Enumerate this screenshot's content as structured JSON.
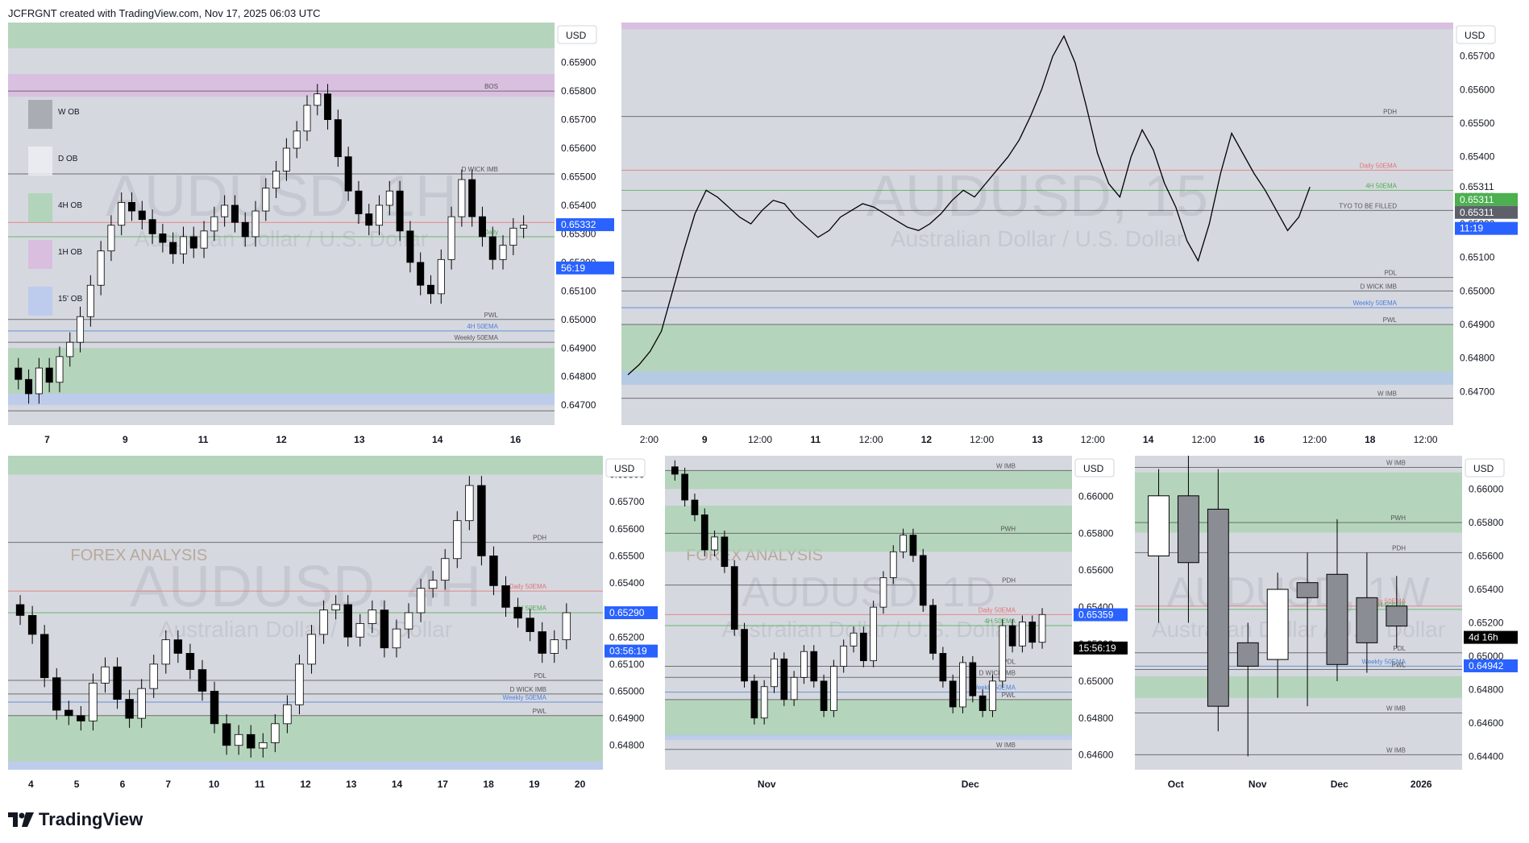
{
  "header": {
    "created_text": "JCFRGNT created with TradingView.com, Nov 17, 2025 06:03 UTC"
  },
  "footer": {
    "brand": "TradingView"
  },
  "colors": {
    "panel_bg": "#d6d8e0",
    "up": "#ffffff",
    "down": "#000000",
    "green_zone": "#a9d3b0",
    "purple_zone": "#d9b8e0",
    "blue_zone": "#b6c8f0",
    "price_blue": "#2962ff",
    "price_green": "#4caf50",
    "price_gray": "#5d606b"
  },
  "chart_data": [
    {
      "id": "p1",
      "type": "candlestick",
      "title": "AUDUSD, 1H",
      "subtitle": "Australian Dollar / U.S. Dollar",
      "currency": "USD",
      "x_ticks": [
        "7",
        "9",
        "11",
        "12",
        "13",
        "14",
        "16"
      ],
      "y_ticks": [
        "0.65900",
        "0.65800",
        "0.65700",
        "0.65600",
        "0.65500",
        "0.65400",
        "0.65300",
        "0.65200",
        "0.65100",
        "0.65000",
        "0.64900",
        "0.64800",
        "0.64700"
      ],
      "ylim": [
        0.6463,
        0.6604
      ],
      "price_labels": [
        {
          "text": "0.65332",
          "value": 0.65332,
          "color": "#2962ff"
        },
        {
          "text": "56:19",
          "value": 0.6522,
          "color": "#2962ff"
        }
      ],
      "legend": [
        "W OB",
        "D OB",
        "4H OB",
        "1H OB",
        "15' OB"
      ],
      "annotations": [
        "BOS",
        "D WICK IMB",
        "PWL",
        "Weekly 50EMA",
        "4H 50EMA",
        "Daily"
      ],
      "close": [
        0.6479,
        0.6474,
        0.6483,
        0.6478,
        0.6487,
        0.6492,
        0.6501,
        0.6512,
        0.6524,
        0.6533,
        0.6541,
        0.6538,
        0.6535,
        0.653,
        0.6527,
        0.6523,
        0.6529,
        0.6525,
        0.6531,
        0.6536,
        0.654,
        0.6534,
        0.6529,
        0.6538,
        0.6546,
        0.6552,
        0.656,
        0.6566,
        0.6575,
        0.6579,
        0.657,
        0.6557,
        0.6545,
        0.6537,
        0.6533,
        0.654,
        0.6545,
        0.6531,
        0.652,
        0.6512,
        0.6509,
        0.6521,
        0.6536,
        0.6549,
        0.6536,
        0.6529,
        0.6521,
        0.6526,
        0.6532,
        0.6533
      ]
    },
    {
      "id": "p2",
      "type": "line",
      "title": "AUDUSD, 15",
      "subtitle": "Australian Dollar / U.S. Dollar",
      "currency": "USD",
      "x_ticks": [
        "2:00",
        "9",
        "12:00",
        "11",
        "12:00",
        "12",
        "12:00",
        "13",
        "12:00",
        "14",
        "12:00",
        "16",
        "12:00",
        "18",
        "12:00"
      ],
      "y_ticks": [
        "0.65700",
        "0.65600",
        "0.65500",
        "0.65400",
        "0.65300",
        "0.65200",
        "0.65100",
        "0.65000",
        "0.64900",
        "0.64800",
        "0.64700",
        "0.64600"
      ],
      "ylim": [
        0.646,
        0.658
      ],
      "price_labels": [
        {
          "text": "0.65311",
          "value": 0.65311,
          "color": "#ffffff"
        },
        {
          "text": "0.65311",
          "value": 0.65311,
          "color": "#4caf50"
        },
        {
          "text": "0.65311",
          "value": 0.65311,
          "color": "#5d606b"
        },
        {
          "text": "11:19",
          "value": 0.6522,
          "color": "#2962ff"
        }
      ],
      "annotations": [
        "PDH",
        "Daily 50EMA",
        "4H 50EMA",
        "TYO TO BE FILLED",
        "PDL",
        "D WICK IMB",
        "Weekly 50EMA",
        "PWL",
        "W IMB"
      ],
      "close": [
        0.6475,
        0.6478,
        0.6482,
        0.6488,
        0.65,
        0.6512,
        0.6523,
        0.653,
        0.6528,
        0.6525,
        0.6522,
        0.652,
        0.6524,
        0.6527,
        0.6526,
        0.6522,
        0.6519,
        0.6516,
        0.6518,
        0.6522,
        0.6524,
        0.6526,
        0.6525,
        0.6523,
        0.6521,
        0.6519,
        0.6518,
        0.652,
        0.6523,
        0.6527,
        0.653,
        0.6528,
        0.6532,
        0.6536,
        0.654,
        0.6545,
        0.6552,
        0.656,
        0.657,
        0.6576,
        0.6568,
        0.6555,
        0.6541,
        0.6532,
        0.6528,
        0.654,
        0.6548,
        0.6542,
        0.6532,
        0.6525,
        0.6515,
        0.6509,
        0.652,
        0.6535,
        0.6547,
        0.6541,
        0.6535,
        0.653,
        0.6524,
        0.6518,
        0.6522,
        0.6531
      ]
    },
    {
      "id": "p3",
      "type": "candlestick",
      "title": "AUDUSD, 4H",
      "subtitle": "Australian Dollar / U.S. Dollar",
      "currency": "USD",
      "watermark": "FOREX ANALYSIS",
      "x_ticks": [
        "4",
        "5",
        "6",
        "7",
        "10",
        "11",
        "12",
        "13",
        "14",
        "17",
        "18",
        "19",
        "20"
      ],
      "y_ticks": [
        "0.65800",
        "0.65700",
        "0.65600",
        "0.65500",
        "0.65400",
        "0.65300",
        "0.65200",
        "0.65100",
        "0.65000",
        "0.64900",
        "0.64800"
      ],
      "ylim": [
        0.6471,
        0.6587
      ],
      "price_labels": [
        {
          "text": "0.65290",
          "value": 0.6529,
          "color": "#2962ff"
        },
        {
          "text": "03:56:19",
          "value": 0.6519,
          "color": "#2962ff"
        }
      ],
      "annotations": [
        "PDH",
        "Daily 50EMA",
        "4H 50EMA",
        "PDL",
        "D WICK IMB",
        "Weekly 50EMA",
        "PWL"
      ],
      "close": [
        0.6528,
        0.6521,
        0.6505,
        0.6493,
        0.6491,
        0.6489,
        0.6503,
        0.6509,
        0.6497,
        0.649,
        0.6501,
        0.651,
        0.6519,
        0.6514,
        0.6508,
        0.65,
        0.6488,
        0.648,
        0.6484,
        0.6479,
        0.6481,
        0.6488,
        0.6495,
        0.651,
        0.6521,
        0.653,
        0.6532,
        0.652,
        0.6525,
        0.653,
        0.6516,
        0.6523,
        0.6529,
        0.6538,
        0.6541,
        0.6549,
        0.6563,
        0.6576,
        0.655,
        0.6539,
        0.6531,
        0.6527,
        0.6522,
        0.6514,
        0.6519,
        0.6529
      ]
    },
    {
      "id": "p4",
      "type": "candlestick",
      "title": "AUDUSD, 1D",
      "subtitle": "Australian Dollar / U.S. Dollar",
      "currency": "USD",
      "watermark": "FOREX ANALYSIS",
      "x_ticks": [
        "Nov",
        "Dec"
      ],
      "y_ticks": [
        "0.66000",
        "0.65800",
        "0.65600",
        "0.65400",
        "0.65200",
        "0.65000",
        "0.64800",
        "0.64600"
      ],
      "ylim": [
        0.6452,
        0.6622
      ],
      "price_labels": [
        {
          "text": "0.65359",
          "value": 0.65359,
          "color": "#2962ff"
        },
        {
          "text": "15:56:19",
          "value": 0.6524,
          "color": "#000000"
        }
      ],
      "annotations": [
        "W IMB",
        "PWH",
        "PDH",
        "Daily 50EMA",
        "4H 50EMA",
        "PDL",
        "D WICK IMB",
        "Weekly 50EMA",
        "PWL",
        "W IMB"
      ],
      "close": [
        0.6612,
        0.6598,
        0.659,
        0.6571,
        0.6578,
        0.6562,
        0.6528,
        0.65,
        0.648,
        0.6497,
        0.6512,
        0.649,
        0.6502,
        0.6516,
        0.65,
        0.6484,
        0.6508,
        0.6519,
        0.6526,
        0.6511,
        0.654,
        0.6556,
        0.657,
        0.6579,
        0.6568,
        0.6541,
        0.6515,
        0.65,
        0.6486,
        0.651,
        0.6492,
        0.6484,
        0.65,
        0.653,
        0.6519,
        0.6532,
        0.6521,
        0.6536
      ]
    },
    {
      "id": "p5",
      "type": "candlestick",
      "title": "AUDUSD, 1W",
      "subtitle": "Australian Dollar / U.S. Dollar",
      "currency": "USD",
      "x_ticks": [
        "Oct",
        "Nov",
        "Dec",
        "2026"
      ],
      "y_ticks": [
        "0.66000",
        "0.65800",
        "0.65600",
        "0.65400",
        "0.65200",
        "0.65000",
        "0.64800",
        "0.64600",
        "0.64400"
      ],
      "ylim": [
        0.6432,
        0.662
      ],
      "price_labels": [
        {
          "text": "4d 16h",
          "value": 0.6518,
          "color": "#000000"
        },
        {
          "text": "0.64942",
          "value": 0.64942,
          "color": "#2962ff"
        }
      ],
      "annotations": [
        "W IMB",
        "PWH",
        "PDH",
        "Daily 50EMA",
        "4H 50EMA",
        "PDL",
        "Weekly 50EMA",
        "PWL",
        "W IMB",
        "W IMB"
      ],
      "candles": [
        [
          0.656,
          0.6612,
          0.652,
          0.6596
        ],
        [
          0.6596,
          0.662,
          0.652,
          0.6556
        ],
        [
          0.6588,
          0.6612,
          0.6455,
          0.647
        ],
        [
          0.6508,
          0.652,
          0.644,
          0.6494
        ],
        [
          0.6498,
          0.655,
          0.6475,
          0.654
        ],
        [
          0.6544,
          0.6562,
          0.647,
          0.6535
        ],
        [
          0.6549,
          0.6582,
          0.6485,
          0.6495
        ],
        [
          0.6535,
          0.6562,
          0.649,
          0.6508
        ],
        [
          0.653,
          0.6548,
          0.6505,
          0.6518
        ]
      ]
    }
  ]
}
